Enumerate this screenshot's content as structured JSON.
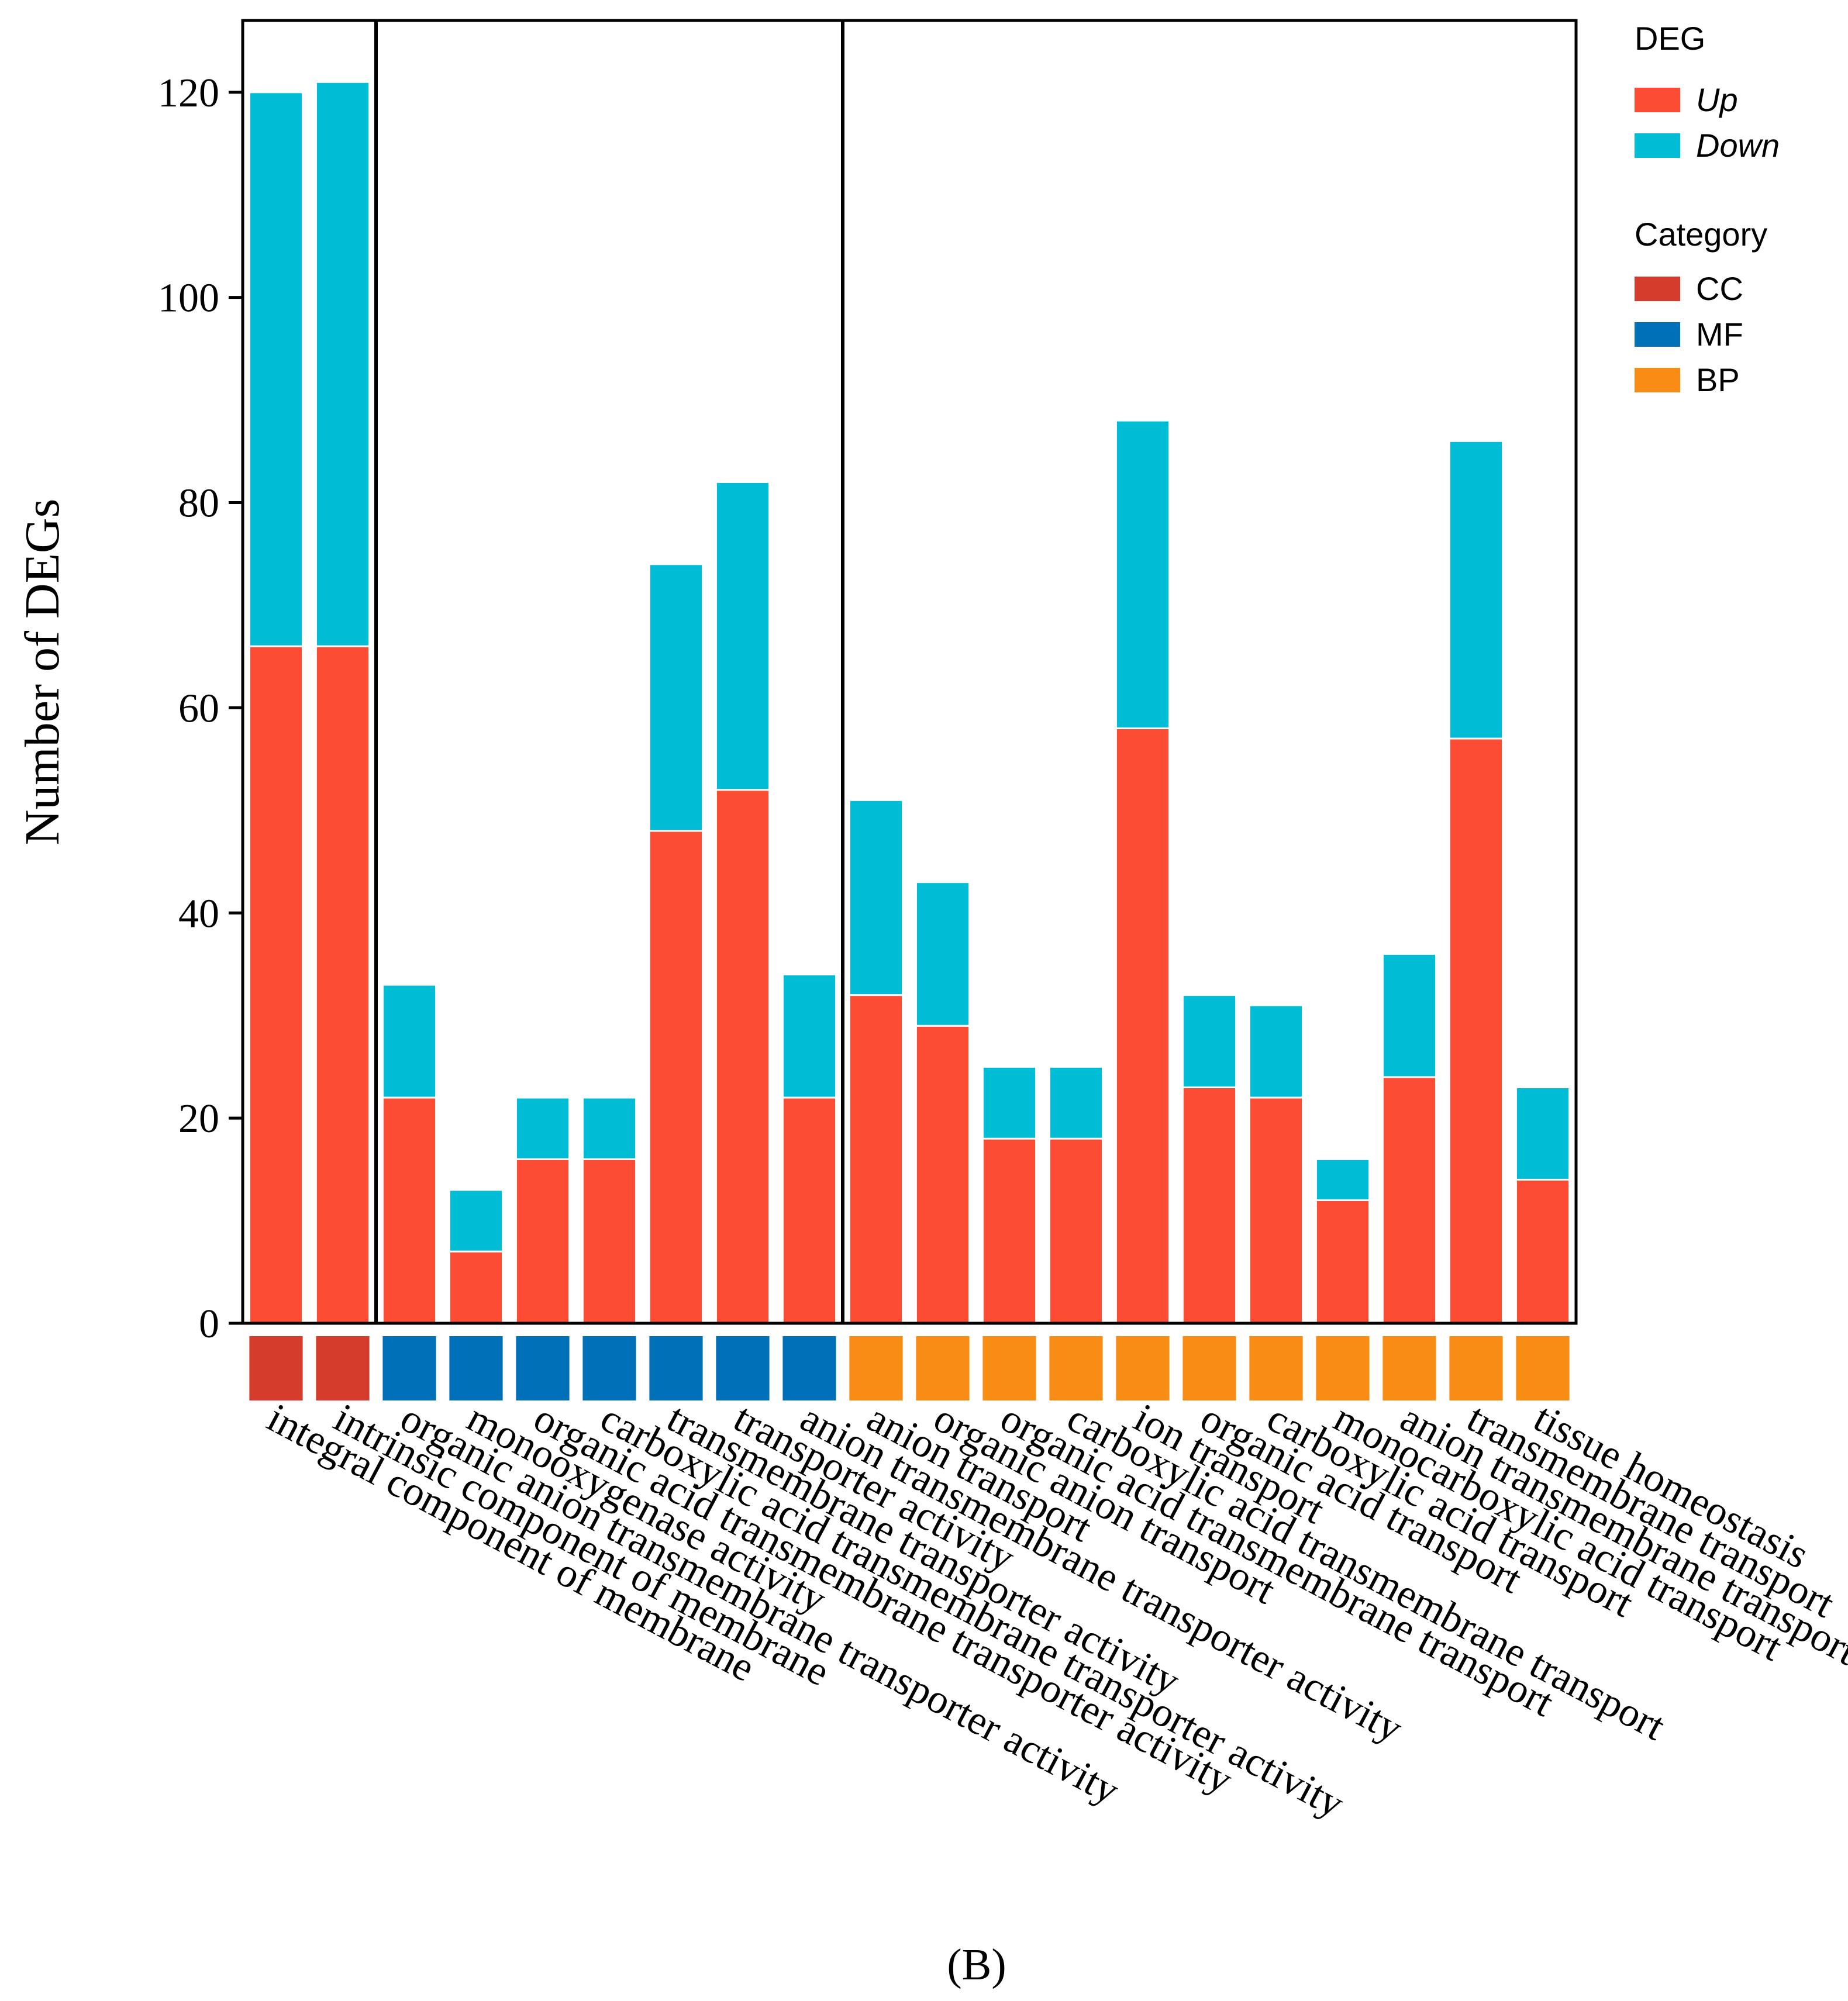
{
  "chart_data": {
    "type": "bar",
    "stacked": true,
    "ylabel": "Number of DEGs",
    "ylim": [
      0,
      127
    ],
    "yticks": [
      0,
      20,
      40,
      60,
      80,
      100,
      120
    ],
    "categories": [
      "integral component of membrane",
      "intrinsic component of membrane",
      "organic anion transmembrane transporter activity",
      "monooxygenase activity",
      "organic acid transmembrane transporter activity",
      "carboxylic acid transmembrane transporter activity",
      "transmembrane transporter activity",
      "transporter activity",
      "anion transmembrane transporter activity",
      "anion transport",
      "organic anion transport",
      "organic acid transmembrane transport",
      "carboxylic acid transmembrane transport",
      "ion transport",
      "organic acid transport",
      "carboxylic acid transport",
      "monocarboxylic acid transport",
      "anion transmembrane transport",
      "transmembrane transport",
      "tissue homeostasis"
    ],
    "category_groups": [
      "CC",
      "CC",
      "MF",
      "MF",
      "MF",
      "MF",
      "MF",
      "MF",
      "MF",
      "BP",
      "BP",
      "BP",
      "BP",
      "BP",
      "BP",
      "BP",
      "BP",
      "BP",
      "BP",
      "BP"
    ],
    "series": [
      {
        "name": "Up",
        "values": [
          66,
          66,
          22,
          7,
          16,
          16,
          48,
          52,
          22,
          32,
          29,
          18,
          18,
          58,
          23,
          22,
          12,
          24,
          57,
          14
        ]
      },
      {
        "name": "Down",
        "values": [
          54,
          55,
          11,
          6,
          6,
          6,
          26,
          30,
          12,
          19,
          14,
          7,
          7,
          30,
          9,
          9,
          4,
          12,
          29,
          9
        ]
      }
    ],
    "legend": {
      "deg_title": "DEG",
      "deg_items": [
        {
          "label": "Up",
          "color": "#fc4c34"
        },
        {
          "label": "Down",
          "color": "#00bcd4"
        }
      ],
      "category_title": "Category",
      "category_items": [
        {
          "label": "CC",
          "color": "#d63c2c"
        },
        {
          "label": "MF",
          "color": "#0070b8"
        },
        {
          "label": "BP",
          "color": "#f88c14"
        }
      ]
    },
    "panel_label": "(B)"
  }
}
